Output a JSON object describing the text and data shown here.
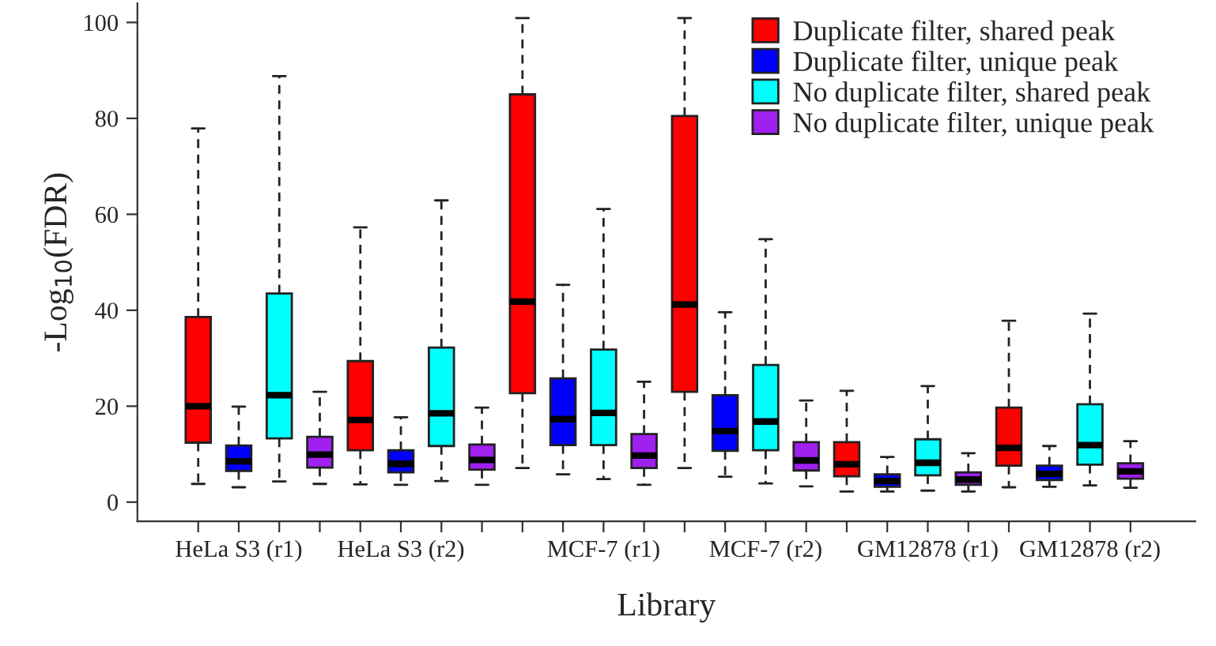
{
  "chart_data": {
    "type": "box",
    "xlabel": "Library",
    "ylabel": "-Log$_{10}$(FDR)",
    "categories": [
      null,
      "HeLa S3 (r1)",
      null,
      null,
      null,
      "HeLa S3 (r2)",
      null,
      null,
      null,
      null,
      "MCF-7 (r1)",
      null,
      null,
      null,
      "MCF-7 (r2)",
      null,
      null,
      null,
      "GM12878 (r1)",
      null,
      null,
      null,
      "GM12878 (r2)",
      null
    ],
    "ylim": [
      -4,
      104
    ],
    "yticks": [
      0,
      20,
      40,
      60,
      80,
      100
    ],
    "legend": "top right",
    "grid": false,
    "series": [
      {
        "name": "Duplicate filter, shared peak",
        "color": "#ff0000",
        "boxes": [
          {
            "low": 3.8,
            "q1": 12.4,
            "median": 20.0,
            "q3": 38.6,
            "high": 77.9
          },
          null,
          null,
          null,
          {
            "low": 3.7,
            "q1": 10.8,
            "median": 17.1,
            "q3": 29.4,
            "high": 57.3
          },
          null,
          null,
          null,
          {
            "low": 7.1,
            "q1": 22.7,
            "median": 41.8,
            "q3": 85.0,
            "high": 100.9
          },
          null,
          null,
          null,
          {
            "low": 7.1,
            "q1": 23.0,
            "median": 41.2,
            "q3": 80.5,
            "high": 100.9
          },
          null,
          null,
          null,
          {
            "low": 2.2,
            "q1": 5.4,
            "median": 7.9,
            "q3": 12.5,
            "high": 23.2
          },
          null,
          null,
          null,
          {
            "low": 3.1,
            "q1": 7.6,
            "median": 11.3,
            "q3": 19.7,
            "high": 37.8
          },
          null,
          null,
          null
        ]
      },
      {
        "name": "Duplicate filter, unique peak",
        "color": "#0000ff",
        "boxes": [
          null,
          {
            "low": 3.1,
            "q1": 6.5,
            "median": 8.5,
            "q3": 11.8,
            "high": 19.9
          },
          null,
          null,
          null,
          {
            "low": 3.6,
            "q1": 6.2,
            "median": 8.0,
            "q3": 10.8,
            "high": 17.7
          },
          null,
          null,
          null,
          {
            "low": 5.8,
            "q1": 11.9,
            "median": 17.3,
            "q3": 25.8,
            "high": 45.3
          },
          null,
          null,
          null,
          {
            "low": 5.3,
            "q1": 10.7,
            "median": 14.8,
            "q3": 22.3,
            "high": 39.6
          },
          null,
          null,
          null,
          {
            "low": 2.2,
            "q1": 3.2,
            "median": 4.4,
            "q3": 5.8,
            "high": 9.4
          },
          null,
          null,
          null,
          {
            "low": 3.2,
            "q1": 4.6,
            "median": 5.9,
            "q3": 7.6,
            "high": 11.7
          },
          null,
          null
        ]
      },
      {
        "name": "No duplicate filter, shared peak",
        "color": "#00ffff",
        "boxes": [
          null,
          null,
          {
            "low": 4.3,
            "q1": 13.3,
            "median": 22.3,
            "q3": 43.5,
            "high": 88.8
          },
          null,
          null,
          null,
          {
            "low": 4.4,
            "q1": 11.7,
            "median": 18.5,
            "q3": 32.2,
            "high": 62.9
          },
          null,
          null,
          null,
          {
            "low": 4.8,
            "q1": 11.9,
            "median": 18.6,
            "q3": 31.8,
            "high": 61.1
          },
          null,
          null,
          null,
          {
            "low": 3.9,
            "q1": 10.8,
            "median": 16.8,
            "q3": 28.6,
            "high": 54.8
          },
          null,
          null,
          null,
          {
            "low": 2.4,
            "q1": 5.6,
            "median": 8.2,
            "q3": 13.1,
            "high": 24.2
          },
          null,
          null,
          null,
          {
            "low": 3.5,
            "q1": 7.8,
            "median": 11.9,
            "q3": 20.4,
            "high": 39.3
          },
          null
        ]
      },
      {
        "name": "No duplicate filter, unique peak",
        "color": "#a020f0",
        "boxes": [
          null,
          null,
          null,
          {
            "low": 3.8,
            "q1": 7.2,
            "median": 9.9,
            "q3": 13.6,
            "high": 23.0
          },
          null,
          null,
          null,
          {
            "low": 3.6,
            "q1": 6.8,
            "median": 8.8,
            "q3": 12.0,
            "high": 19.7
          },
          null,
          null,
          null,
          {
            "low": 3.6,
            "q1": 7.1,
            "median": 9.7,
            "q3": 14.2,
            "high": 25.1
          },
          null,
          null,
          null,
          {
            "low": 3.3,
            "q1": 6.6,
            "median": 8.7,
            "q3": 12.5,
            "high": 21.2
          },
          null,
          null,
          null,
          {
            "low": 2.2,
            "q1": 3.6,
            "median": 4.7,
            "q3": 6.2,
            "high": 10.2
          },
          null,
          null,
          null,
          {
            "low": 3.0,
            "q1": 4.9,
            "median": 6.4,
            "q3": 8.1,
            "high": 12.7
          }
        ]
      }
    ]
  }
}
